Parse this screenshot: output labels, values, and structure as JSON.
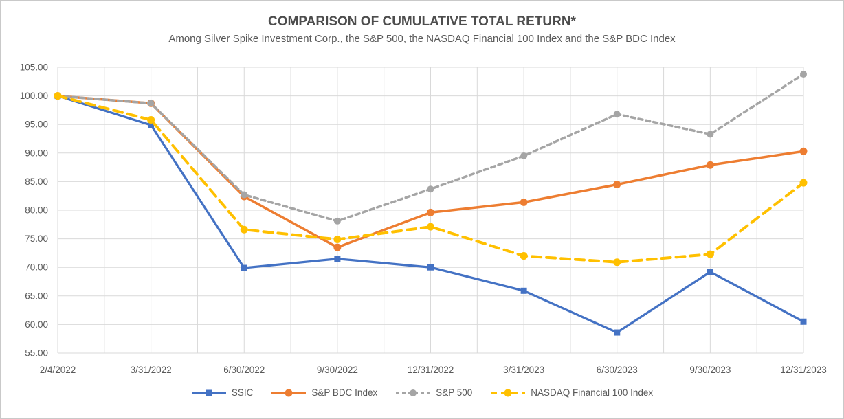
{
  "header": {
    "title": "COMPARISON OF CUMULATIVE TOTAL RETURN*",
    "subtitle": "Among Silver Spike Investment Corp., the S&P 500, the NASDAQ Financial 100 Index and the S&P BDC Index"
  },
  "chart_data": {
    "type": "line",
    "title": "COMPARISON OF CUMULATIVE TOTAL RETURN*",
    "subtitle": "Among Silver Spike Investment Corp., the S&P 500, the NASDAQ Financial 100 Index and the S&P BDC Index",
    "categories": [
      "2/4/2022",
      "3/31/2022",
      "6/30/2022",
      "9/30/2022",
      "12/31/2022",
      "3/31/2023",
      "6/30/2023",
      "9/30/2023",
      "12/31/2023"
    ],
    "series": [
      {
        "name": "SSIC",
        "color": "#4472C4",
        "dash": "solid",
        "marker": "square",
        "values": [
          100.0,
          94.9,
          69.9,
          71.5,
          70.0,
          65.9,
          58.6,
          69.2,
          60.5
        ]
      },
      {
        "name": "S&P BDC Index",
        "color": "#ED7D31",
        "dash": "solid",
        "marker": "circle",
        "values": [
          100.0,
          98.7,
          82.4,
          73.5,
          79.6,
          81.4,
          84.5,
          87.9,
          90.3
        ]
      },
      {
        "name": "S&P 500",
        "color": "#A5A5A5",
        "dash": "dashed",
        "marker": "circle",
        "values": [
          100.0,
          98.7,
          82.7,
          78.1,
          83.7,
          89.5,
          96.8,
          93.3,
          103.8
        ]
      },
      {
        "name": "NASDAQ Financial 100 Index",
        "color": "#FFC000",
        "dash": "long-dash",
        "marker": "circle",
        "values": [
          100.0,
          95.8,
          76.6,
          74.9,
          77.1,
          72.0,
          70.9,
          72.3,
          84.8
        ]
      }
    ],
    "ylim": [
      55,
      105
    ],
    "ytick_step": 5,
    "ytick_labels": [
      "55.00",
      "60.00",
      "65.00",
      "70.00",
      "75.00",
      "80.00",
      "85.00",
      "90.00",
      "95.00",
      "100.00",
      "105.00"
    ],
    "grid": {
      "horizontal": true,
      "vertical": true,
      "vertical_divisions_per_interval": 2,
      "color": "#D9D9D9"
    },
    "legend_position": "bottom",
    "axis_text_color": "#595959"
  }
}
